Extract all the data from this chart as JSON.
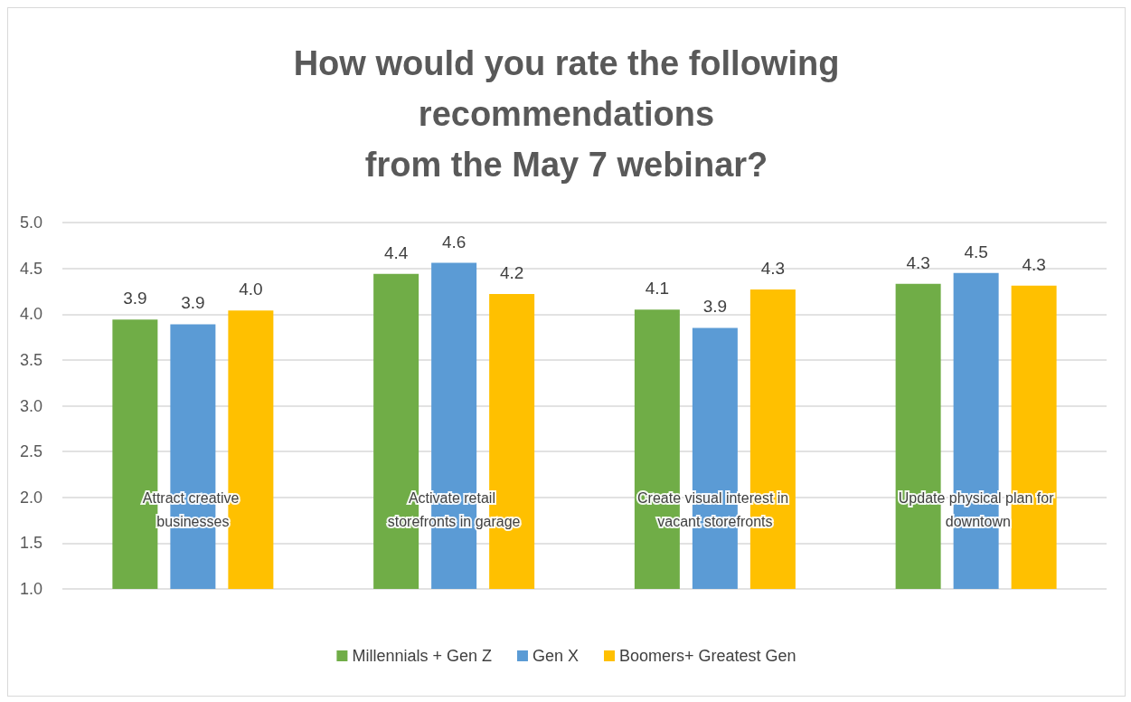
{
  "chart_data": {
    "type": "bar",
    "title": "How would you rate the following\nrecommendations\nfrom the May 7 webinar?",
    "categories": [
      "Attract creative businesses",
      "Activate retail storefronts in garage",
      "Create visual interest in vacant storefronts",
      "Update physical plan for downtown"
    ],
    "series": [
      {
        "name": "Millennials + Gen Z",
        "color": "#70ad47",
        "values": [
          3.94,
          4.44,
          4.05,
          4.33
        ],
        "value_labels": [
          "3.9",
          "4.4",
          "4.1",
          "4.3"
        ]
      },
      {
        "name": "Gen X",
        "color": "#5b9bd5",
        "values": [
          3.89,
          4.56,
          3.85,
          4.45
        ],
        "value_labels": [
          "3.9",
          "4.6",
          "3.9",
          "4.5"
        ]
      },
      {
        "name": "Boomers+ Greatest Gen",
        "color": "#ffc000",
        "values": [
          4.04,
          4.22,
          4.27,
          4.31
        ],
        "value_labels": [
          "4.0",
          "4.2",
          "4.3",
          "4.3"
        ]
      }
    ],
    "ylim": [
      1,
      5
    ],
    "yticks": [
      {
        "value": 1,
        "label": "1.0"
      },
      {
        "value": 1.5,
        "label": "1.5"
      },
      {
        "value": 2,
        "label": "2.0"
      },
      {
        "value": 2.5,
        "label": "2.5"
      },
      {
        "value": 3,
        "label": "3.0"
      },
      {
        "value": 3.5,
        "label": "3.5"
      },
      {
        "value": 4,
        "label": "4.0"
      },
      {
        "value": 4.5,
        "label": "4.5"
      },
      {
        "value": 5,
        "label": "5.0"
      }
    ],
    "grid": "y",
    "legend": "bottom"
  }
}
